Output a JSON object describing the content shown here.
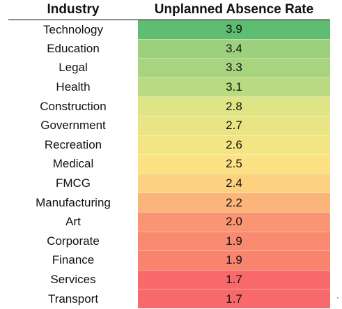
{
  "chart_data": {
    "type": "table",
    "columns": [
      "Industry",
      "Unplanned Absence Rate"
    ],
    "rows": [
      {
        "industry": "Technology",
        "value": "3.9",
        "color": "#5ebd72"
      },
      {
        "industry": "Education",
        "value": "3.4",
        "color": "#9dd07d"
      },
      {
        "industry": "Legal",
        "value": "3.3",
        "color": "#a8d47f"
      },
      {
        "industry": "Health",
        "value": "3.1",
        "color": "#b9da81"
      },
      {
        "industry": "Construction",
        "value": "2.8",
        "color": "#dfe585"
      },
      {
        "industry": "Government",
        "value": "2.7",
        "color": "#e9e584"
      },
      {
        "industry": "Recreation",
        "value": "2.6",
        "color": "#f4e584"
      },
      {
        "industry": "Medical",
        "value": "2.5",
        "color": "#fde283"
      },
      {
        "industry": "FMCG",
        "value": "2.4",
        "color": "#fcd281"
      },
      {
        "industry": "Manufacturing",
        "value": "2.2",
        "color": "#fbb57b"
      },
      {
        "industry": "Art",
        "value": "2.0",
        "color": "#f99572"
      },
      {
        "industry": "Corporate",
        "value": "1.9",
        "color": "#f9896f"
      },
      {
        "industry": "Finance",
        "value": "1.9",
        "color": "#f9846e"
      },
      {
        "industry": "Services",
        "value": "1.7",
        "color": "#f8696b"
      },
      {
        "industry": "Transport",
        "value": "1.7",
        "color": "#f8696b"
      }
    ]
  }
}
